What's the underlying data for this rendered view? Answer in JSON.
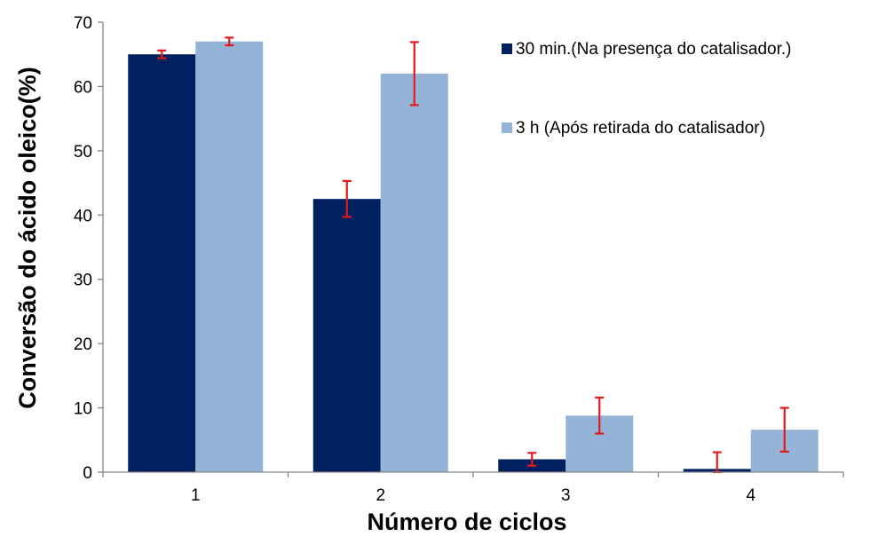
{
  "chart_data": {
    "type": "bar",
    "title": "",
    "xlabel": "Número de ciclos",
    "ylabel": "Conversão do ácido oleico(%)",
    "categories": [
      "1",
      "2",
      "3",
      "4"
    ],
    "ylim": [
      0,
      70
    ],
    "yticks": [
      0,
      10,
      20,
      30,
      40,
      50,
      60,
      70
    ],
    "grid": false,
    "legend_position": "top-right",
    "series": [
      {
        "name": "30 min.(Na presença do catalisador.)",
        "color": "#002060",
        "values": [
          65,
          42.5,
          2,
          0.5
        ],
        "error": [
          0.6,
          2.8,
          1.0,
          2.6
        ]
      },
      {
        "name": "3 h (Após retirada do catalisador)",
        "color": "#95B3D7",
        "values": [
          67,
          62,
          8.8,
          6.6
        ],
        "error": [
          0.6,
          4.9,
          2.8,
          3.4
        ]
      }
    ],
    "error_bar_color": "#E31A1C"
  }
}
